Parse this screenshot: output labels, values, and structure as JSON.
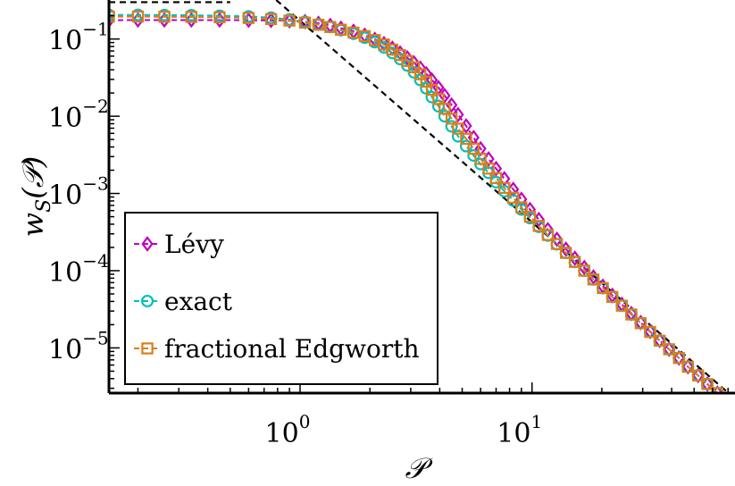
{
  "chart_data": {
    "type": "line",
    "xscale": "log",
    "yscale": "log",
    "xlim": [
      0.15,
      75
    ],
    "ylim": [
      2.6e-06,
      0.32
    ],
    "xlabel": "𝒫",
    "ylabel_main": "w",
    "ylabel_sub": "S",
    "ylabel_paren": "(𝒫)",
    "x_ticks": [
      {
        "base": "10",
        "exp": "0",
        "value": 1
      },
      {
        "base": "10",
        "exp": "1",
        "value": 10
      }
    ],
    "y_ticks": [
      {
        "base": "10",
        "exp": "−1",
        "value": 0.1
      },
      {
        "base": "10",
        "exp": "−2",
        "value": 0.01
      },
      {
        "base": "10",
        "exp": "−3",
        "value": 0.001
      },
      {
        "base": "10",
        "exp": "−4",
        "value": 0.0001
      },
      {
        "base": "10",
        "exp": "−5",
        "value": 1e-05
      }
    ],
    "grid": false,
    "legend_position": "lower-left",
    "series": [
      {
        "name": "Lévy",
        "color": "#bf00bf",
        "marker": "diamond",
        "line": "dashed",
        "x": [
          0.15,
          0.2,
          0.26,
          0.34,
          0.45,
          0.6,
          0.75,
          0.9,
          1.05,
          1.2,
          1.35,
          1.5,
          1.7,
          1.9,
          2.1,
          2.3,
          2.5,
          2.7,
          2.9,
          3.1,
          3.3,
          3.5,
          3.7,
          3.95,
          4.2,
          4.5,
          4.8,
          5.2,
          5.6,
          6.0,
          6.5,
          7.0,
          7.6,
          8.3,
          9.0,
          9.8,
          10.7,
          11.7,
          12.8,
          14.0,
          15.3,
          16.8,
          18.4,
          20.2,
          22.2,
          24.4,
          26.8,
          29.4,
          32.3,
          35.5,
          39,
          43,
          47,
          52,
          57,
          63,
          69,
          75
        ],
        "y": [
          0.175,
          0.176,
          0.176,
          0.176,
          0.176,
          0.175,
          0.174,
          0.172,
          0.168,
          0.16,
          0.15,
          0.138,
          0.126,
          0.112,
          0.099,
          0.087,
          0.076,
          0.066,
          0.057,
          0.049,
          0.042,
          0.0355,
          0.0295,
          0.0235,
          0.0185,
          0.014,
          0.0105,
          0.0075,
          0.0053,
          0.0038,
          0.0028,
          0.0021,
          0.00155,
          0.00113,
          0.00084,
          0.00062,
          0.00046,
          0.00034,
          0.000255,
          0.00019,
          0.000145,
          0.00011,
          8.3e-05,
          6.3e-05,
          4.8e-05,
          3.66e-05,
          2.79e-05,
          2.13e-05,
          1.63e-05,
          1.25e-05,
          9.6e-06,
          7.4e-06,
          5.7e-06,
          4.4e-06,
          3.4e-06,
          2.6e-06,
          2e-06,
          1.6e-06
        ]
      },
      {
        "name": "exact",
        "color": "#00bfbf",
        "marker": "circle",
        "line": "dashed",
        "x": [
          0.15,
          0.2,
          0.26,
          0.34,
          0.45,
          0.6,
          0.75,
          0.9,
          1.05,
          1.2,
          1.35,
          1.5,
          1.7,
          1.9,
          2.1,
          2.3,
          2.5,
          2.7,
          2.9,
          3.1,
          3.3,
          3.5,
          3.7,
          3.95,
          4.2,
          4.5,
          4.8,
          5.2,
          5.6,
          6.0,
          6.5,
          7.0,
          7.6,
          8.3,
          9.0,
          9.8,
          10.7,
          11.7,
          12.8,
          14.0,
          15.3,
          16.8,
          18.4,
          20.2,
          22.2,
          24.4,
          26.8,
          29.4,
          32.3,
          35.5,
          39,
          43,
          47,
          52,
          57,
          63,
          69,
          75
        ],
        "y": [
          0.205,
          0.205,
          0.204,
          0.203,
          0.2,
          0.196,
          0.189,
          0.179,
          0.167,
          0.155,
          0.143,
          0.13,
          0.117,
          0.104,
          0.091,
          0.078,
          0.066,
          0.055,
          0.0455,
          0.037,
          0.0295,
          0.023,
          0.0177,
          0.0135,
          0.01,
          0.0074,
          0.0055,
          0.0041,
          0.0031,
          0.0024,
          0.00185,
          0.0014,
          0.00107,
          0.00081,
          0.00062,
          0.00048,
          0.00037,
          0.000285,
          0.00022,
          0.00017,
          0.00013,
          0.0001,
          7.7e-05,
          5.95e-05,
          4.57e-05,
          3.52e-05,
          2.71e-05,
          2.09e-05,
          1.61e-05,
          1.24e-05,
          9.6e-06,
          7.4e-06,
          5.7e-06,
          4.4e-06,
          3.4e-06,
          2.6e-06,
          2e-06,
          1.6e-06
        ]
      },
      {
        "name": "fractional Edgworth",
        "color": "#d97f1a",
        "marker": "square",
        "line": "dashed",
        "x": [
          0.15,
          0.2,
          0.26,
          0.34,
          0.45,
          0.6,
          0.75,
          0.9,
          1.05,
          1.2,
          1.35,
          1.5,
          1.7,
          1.9,
          2.1,
          2.3,
          2.5,
          2.7,
          2.9,
          3.1,
          3.3,
          3.5,
          3.7,
          3.95,
          4.2,
          4.5,
          4.8,
          5.2,
          5.6,
          6.0,
          6.5,
          7.0,
          7.6,
          8.3,
          9.0,
          9.8,
          10.7,
          11.7,
          12.8,
          14.0,
          15.3,
          16.8,
          18.4,
          20.2,
          22.2,
          24.4,
          26.8,
          29.4,
          32.3,
          35.5,
          39,
          43,
          47,
          52,
          57,
          63,
          69,
          75
        ],
        "y": [
          0.195,
          0.195,
          0.194,
          0.193,
          0.191,
          0.187,
          0.181,
          0.173,
          0.163,
          0.153,
          0.143,
          0.132,
          0.121,
          0.109,
          0.097,
          0.085,
          0.073,
          0.062,
          0.052,
          0.043,
          0.035,
          0.028,
          0.022,
          0.0167,
          0.0125,
          0.0093,
          0.0069,
          0.0051,
          0.0038,
          0.0028,
          0.0021,
          0.00158,
          0.00118,
          0.00088,
          0.00066,
          0.0005,
          0.00038,
          0.00029,
          0.000222,
          0.00017,
          0.00013,
          0.0001,
          7.7e-05,
          5.95e-05,
          4.57e-05,
          3.52e-05,
          2.71e-05,
          2.09e-05,
          1.61e-05,
          1.24e-05,
          9.6e-06,
          7.4e-06,
          5.7e-06,
          4.4e-06,
          3.4e-06,
          2.6e-06,
          2e-06,
          1.6e-06
        ]
      }
    ],
    "reference_lines": [
      {
        "color": "#000000",
        "line": "dashed",
        "x": [
          0.15,
          0.5
        ],
        "y": [
          0.0,
          0.0
        ],
        "x_flat": [
          0.15,
          0.5
        ],
        "y_flat": [
          0.3,
          0.3
        ]
      },
      {
        "color": "#000000",
        "line": "dashed",
        "x_powerlaw": [
          1.0,
          75
        ],
        "y_powerlaw": [
          0.33,
          2.2e-06
        ]
      }
    ]
  }
}
